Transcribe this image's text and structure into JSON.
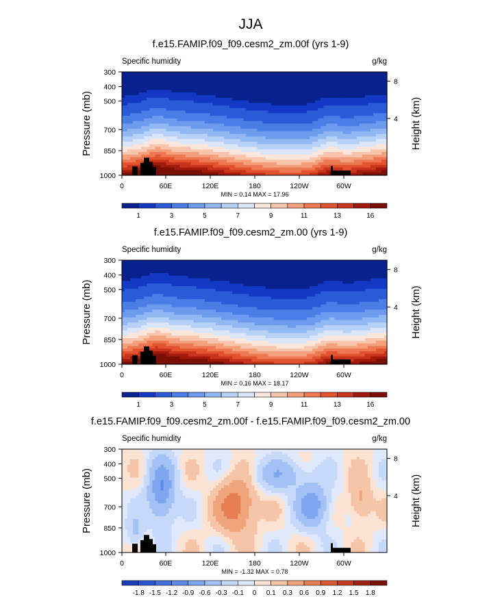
{
  "figure": {
    "title": "JJA"
  },
  "chart_data": [
    {
      "type": "heatmap",
      "title": "f.e15.FAMIP.f09_f09.cesm2_zm.00f (yrs 1-9)",
      "left_label": "Specific humidity",
      "right_label": "g/kg",
      "ylabel": "Pressure (mb)",
      "y2label": "Height (km)",
      "yticks": [
        "300",
        "400",
        "500",
        "700",
        "850",
        "1000"
      ],
      "y2ticks": [
        "8",
        "4"
      ],
      "xticks": [
        "0",
        "60E",
        "120E",
        "180",
        "120W",
        "60W"
      ],
      "minmax": "MIN =  0.14  MAX =  17.96",
      "colorbar_labels": [
        "1",
        "3",
        "5",
        "7",
        "9",
        "11",
        "13",
        "16"
      ]
    },
    {
      "type": "heatmap",
      "title": "f.e15.FAMIP.f09_f09.cesm2_zm.00 (yrs 1-9)",
      "left_label": "Specific humidity",
      "right_label": "g/kg",
      "ylabel": "Pressure (mb)",
      "y2label": "Height (km)",
      "yticks": [
        "300",
        "400",
        "500",
        "700",
        "850",
        "1000"
      ],
      "y2ticks": [
        "8",
        "4"
      ],
      "xticks": [
        "0",
        "60E",
        "120E",
        "180",
        "120W",
        "60W"
      ],
      "minmax": "MIN =  0.16  MAX =  18.17",
      "colorbar_labels": [
        "1",
        "3",
        "5",
        "7",
        "9",
        "11",
        "13",
        "16"
      ]
    },
    {
      "type": "heatmap",
      "title": "f.e15.FAMIP.f09_f09.cesm2_zm.00f - f.e15.FAMIP.f09_f09.cesm2_zm.00",
      "left_label": "Specific humidity",
      "right_label": "g/kg",
      "ylabel": "Pressure (mb)",
      "y2label": "Height (km)",
      "yticks": [
        "300",
        "400",
        "500",
        "700",
        "850",
        "1000"
      ],
      "y2ticks": [
        "8",
        "4"
      ],
      "xticks": [
        "0",
        "60E",
        "120E",
        "180",
        "120W",
        "60W"
      ],
      "minmax": "MIN = -1.32  MAX =  0.78",
      "colorbar_labels": [
        "-1.8",
        "-1.5",
        "-1.2",
        "-0.9",
        "-0.6",
        "-0.3",
        "-0.1",
        "0",
        "0.1",
        "0.3",
        "0.6",
        "0.9",
        "1.2",
        "1.5",
        "1.8"
      ]
    }
  ],
  "colors": {
    "abs_scale": [
      "#08218c",
      "#1238c4",
      "#2a5ad8",
      "#4a7de6",
      "#6d9bee",
      "#92b8f3",
      "#b8d2f7",
      "#dbe7f8",
      "#fbe6dc",
      "#f8c6ad",
      "#f4a07d",
      "#ee7852",
      "#e2532f",
      "#c9351a",
      "#a21a0d",
      "#7a0f06"
    ],
    "diff_scale": [
      "#1a3fb8",
      "#2b56cf",
      "#4270dd",
      "#5d8ae6",
      "#7ea6ee",
      "#a3c1f4",
      "#c6d9f8",
      "#dfe9fb",
      "#fbe3d4",
      "#f6c4a6",
      "#efa47c",
      "#e67e52",
      "#d85a33",
      "#c23b1d",
      "#a0230f",
      "#7a1207"
    ],
    "land": "#000000"
  }
}
